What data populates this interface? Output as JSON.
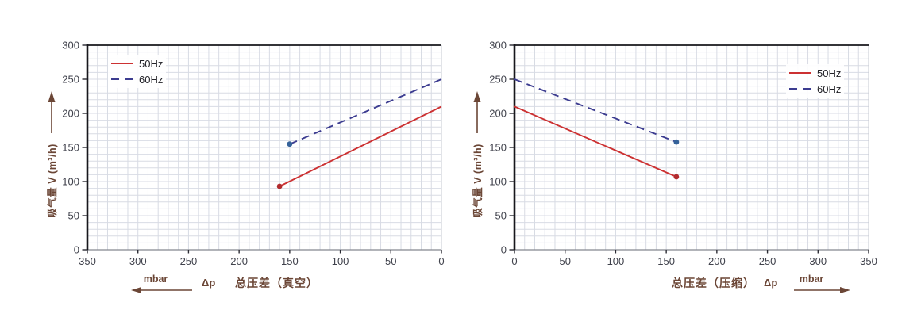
{
  "colors": {
    "red_line": "#cc3132",
    "red_marker": "#b22b2e",
    "blue_line": "#3c3c90",
    "blue_marker": "#35629a",
    "grid": "#d8dbe4",
    "spine_dark": "#17171c",
    "spine_bottom": "#85878f",
    "spine_right": "#c6c9d1",
    "tick_text": "#40424c",
    "axis_label": "#6b4636"
  },
  "chart_data": [
    {
      "type": "line",
      "title": "",
      "xlabel": "总压差（真空）",
      "dp_label": "Δp",
      "x_unit": "mbar",
      "x_arrow_dir": "left",
      "ylabel": "吸气量 V (m³/h)",
      "xlim": [
        0,
        350
      ],
      "ylim": [
        0,
        300
      ],
      "x_dir": "reversed",
      "xticks": [
        350,
        300,
        250,
        200,
        150,
        100,
        50,
        0
      ],
      "yticks": [
        0,
        50,
        100,
        150,
        200,
        250,
        300
      ],
      "grid": {
        "minor_step_x": 10,
        "minor_step_y": 10
      },
      "legend_position": "top-left",
      "series": [
        {
          "name": "50Hz",
          "style": "solid",
          "color": "#cc3132",
          "marker_color": "#b22b2e",
          "points": [
            [
              0,
              210
            ],
            [
              160,
              93
            ]
          ]
        },
        {
          "name": "60Hz",
          "style": "dashed",
          "color": "#3c3c90",
          "marker_color": "#35629a",
          "points": [
            [
              0,
              250
            ],
            [
              150,
              155
            ]
          ]
        }
      ]
    },
    {
      "type": "line",
      "title": "",
      "xlabel": "总压差（压缩）",
      "dp_label": "Δp",
      "x_unit": "mbar",
      "x_arrow_dir": "right",
      "ylabel": "吸气量 V (m³/h)",
      "xlim": [
        0,
        350
      ],
      "ylim": [
        0,
        300
      ],
      "x_dir": "normal",
      "xticks": [
        0,
        50,
        100,
        150,
        200,
        250,
        300,
        350
      ],
      "yticks": [
        0,
        50,
        100,
        150,
        200,
        250,
        300
      ],
      "grid": {
        "minor_step_x": 10,
        "minor_step_y": 10
      },
      "legend_position": "top-right",
      "series": [
        {
          "name": "50Hz",
          "style": "solid",
          "color": "#cc3132",
          "marker_color": "#b22b2e",
          "points": [
            [
              0,
              210
            ],
            [
              160,
              107
            ]
          ]
        },
        {
          "name": "60Hz",
          "style": "dashed",
          "color": "#3c3c90",
          "marker_color": "#35629a",
          "points": [
            [
              0,
              250
            ],
            [
              160,
              158
            ]
          ]
        }
      ]
    }
  ]
}
